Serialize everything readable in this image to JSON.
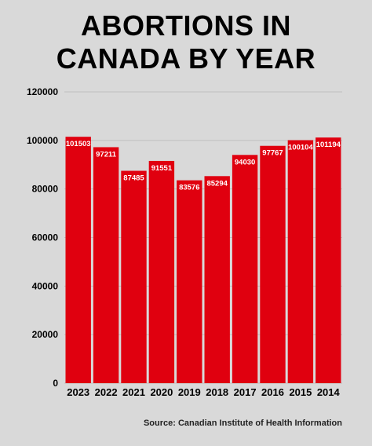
{
  "title_line1": "ABORTIONS IN",
  "title_line2": "CANADA BY YEAR",
  "source": "Source: Canadian Institute of Health Information",
  "colors": {
    "bar": "#e0000f",
    "background": "#d9d9d9",
    "grid": "#bfbfbf"
  },
  "chart_data": {
    "type": "bar",
    "title": "ABORTIONS IN CANADA BY YEAR",
    "categories": [
      "2023",
      "2022",
      "2021",
      "2020",
      "2019",
      "2018",
      "2017",
      "2016",
      "2015",
      "2014"
    ],
    "values": [
      101503,
      97211,
      87485,
      91551,
      83576,
      85294,
      94030,
      97767,
      100104,
      101194
    ],
    "data_labels": [
      "101503",
      "97211",
      "87485",
      "91551",
      "83576",
      "85294",
      "94030",
      "97767",
      "100104",
      "101194"
    ],
    "yticks": [
      "0",
      "20000",
      "40000",
      "60000",
      "80000",
      "100000",
      "120000"
    ],
    "ylim": [
      0,
      120000
    ],
    "xlabel": "",
    "ylabel": "",
    "grid": true
  }
}
